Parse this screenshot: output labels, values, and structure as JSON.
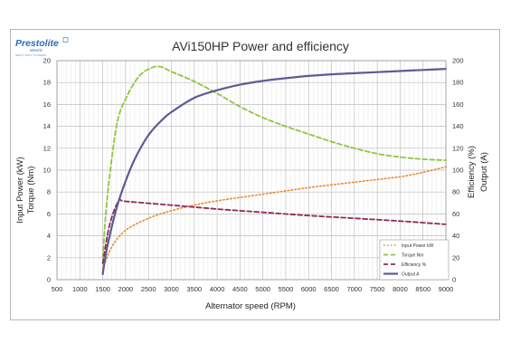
{
  "logo": {
    "brand": "Prestolite",
    "sub": "electric",
    "tagline": "HEAVY DUTY SYSTEMS"
  },
  "chart_data": {
    "type": "line",
    "title": "AVi150HP Power and efficiency",
    "xlabel": "Alternator speed (RPM)",
    "ylabel_left": [
      "Input Power (kW)",
      "Torque (Nm)"
    ],
    "ylabel_right": [
      "Efficiency (%)",
      "Output (A)"
    ],
    "xlim": [
      500,
      9000
    ],
    "ylim_left": [
      0,
      20
    ],
    "ylim_right": [
      0,
      200
    ],
    "x_ticks": [
      "500",
      "1000",
      "1500",
      "2000",
      "2500",
      "3000",
      "3500",
      "4000",
      "4500",
      "5000",
      "5500",
      "6000",
      "6500",
      "7000",
      "7500",
      "8000",
      "8500",
      "9000"
    ],
    "y_left_ticks": [
      "0",
      "2",
      "4",
      "6",
      "8",
      "10",
      "12",
      "14",
      "16",
      "18",
      "20"
    ],
    "y_right_ticks": [
      "0",
      "20",
      "40",
      "60",
      "80",
      "100",
      "120",
      "140",
      "160",
      "180",
      "200"
    ],
    "grid": true,
    "legend_position": "bottom-right",
    "series": [
      {
        "name": "Input Power kW",
        "color": "#e98a2e",
        "style": "dotted",
        "axis": "left",
        "x": [
          1500,
          1700,
          2000,
          2500,
          3000,
          3500,
          4000,
          5000,
          6000,
          7000,
          8000,
          8500,
          9000
        ],
        "y": [
          1.0,
          3.0,
          4.5,
          5.6,
          6.3,
          6.8,
          7.2,
          7.8,
          8.4,
          8.9,
          9.4,
          9.8,
          10.3
        ]
      },
      {
        "name": "Torque Nm",
        "color": "#8ec63f",
        "style": "dashed",
        "axis": "left",
        "x": [
          1500,
          1600,
          1800,
          2000,
          2300,
          2600,
          2800,
          3000,
          3500,
          4000,
          4500,
          5000,
          5500,
          6000,
          6500,
          7000,
          7500,
          8000,
          8500,
          9000
        ],
        "y": [
          2.0,
          7.5,
          14.0,
          16.5,
          18.6,
          19.4,
          19.4,
          19.0,
          18.1,
          17.0,
          15.8,
          14.8,
          14.0,
          13.3,
          12.6,
          12.0,
          11.5,
          11.2,
          11.0,
          10.9
        ]
      },
      {
        "name": "Efficiency %",
        "color": "#8e2a5c",
        "style": "dashed",
        "axis": "right",
        "x": [
          1500,
          1650,
          1850,
          2000,
          3000,
          4000,
          5000,
          6000,
          7000,
          8000,
          9000
        ],
        "y": [
          15,
          50,
          72,
          71.5,
          68,
          64.5,
          61.5,
          58.5,
          56,
          53.5,
          50.5
        ]
      },
      {
        "name": "Output A",
        "color": "#5b5c94",
        "style": "solid",
        "axis": "right",
        "x": [
          1500,
          1600,
          1800,
          2000,
          2200,
          2500,
          2800,
          3000,
          3500,
          4000,
          4500,
          5000,
          5500,
          6000,
          6500,
          7000,
          7500,
          8000,
          8500,
          9000
        ],
        "y": [
          5,
          30,
          65,
          90,
          110,
          132,
          146,
          153,
          166,
          173,
          178,
          181.5,
          184,
          186,
          187.5,
          188.5,
          189.5,
          190.5,
          191.5,
          192.5
        ]
      }
    ]
  }
}
